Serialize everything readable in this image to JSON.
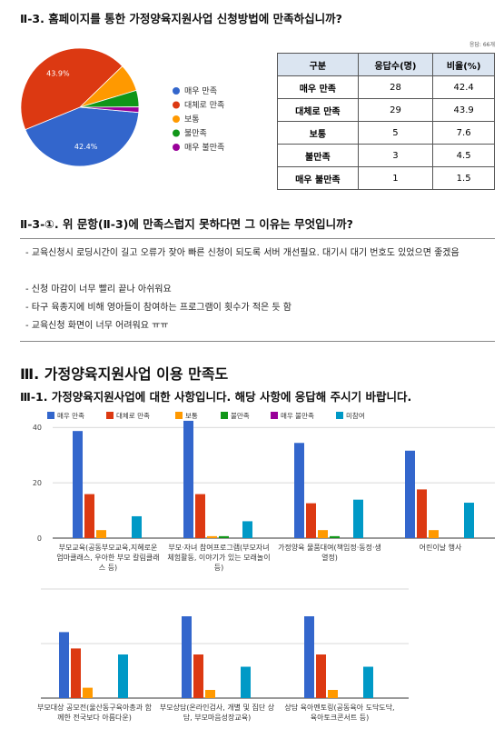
{
  "section1": {
    "title": "Ⅱ-3. 홈페이지를 통한 가정양육지원사업 신청방법에 만족하십니까?"
  },
  "table": {
    "note": "응답: 66개",
    "header": [
      "구분",
      "응답수(명)",
      "비율(%)"
    ],
    "rows": [
      [
        "매우 만족",
        28,
        42.4
      ],
      [
        "대체로 만족",
        29,
        43.9
      ],
      [
        "보통",
        5,
        7.6
      ],
      [
        "불만족",
        3,
        4.5
      ],
      [
        "매우 불만족",
        1,
        1.5
      ]
    ]
  },
  "section2": {
    "title": "Ⅱ-3-①. 위 문항(Ⅱ-3)에 만족스럽지 못하다면 그 이유는 무엇입니까?",
    "items": [
      "- 교육신청시 로딩시간이 길고 오류가 잦아 빠른 신청이 되도록 서버 개선필요. 대기시 대기 번호도 있었으면 좋겠음",
      "- 신청 마감이 너무 빨리 끝나 아쉬워요",
      "- 타구 육종지에 비해 영아들이 참여하는 프로그램이 횟수가 적은 듯 함",
      "- 교육신청 화면이 너무 어려워요 ㅠㅠ"
    ]
  },
  "section3": {
    "title": "Ⅲ. 가정양육지원사업 이용 만족도",
    "subtitle": "Ⅲ-1. 가정양육지원사업에 대한 사항입니다. 해당 사항에 응답해 주시기 바랍니다."
  },
  "chart_data": [
    {
      "type": "pie",
      "categories": [
        "매우 만족",
        "대체로 만족",
        "보통",
        "불만족",
        "매우 불만족"
      ],
      "values": [
        42.4,
        43.9,
        7.6,
        4.5,
        1.5
      ],
      "value_labels": [
        "42.4%",
        "43.9%",
        null,
        null,
        null
      ],
      "colors": [
        "#3366cc",
        "#dc3912",
        "#ff9900",
        "#109618",
        "#990099"
      ]
    },
    {
      "type": "bar",
      "categories": [
        "부모교육(공동부모교육,지혜로운 엄마클래스, 우아한 부모 칼림클래스 등)",
        "부모·자녀 참여프로그램(부모자녀 체험활동, 이야기가 있는 모래놀이 등)",
        "가정양육 물품대여(책임정·동정·생열정)",
        "어린이날 행사",
        "부모대상 공모전(울산동구육아총과 함께한 전국보다 아름다운)",
        "부모상담(온라인검사, 개별 및 집단 상담, 부모마음성장교육)",
        "상담 육아멘토링(공동육아 도닥도닥, 육아토크콘서트 등)"
      ],
      "series": [
        {
          "name": "매우 만족",
          "color": "#3366cc",
          "values": [
            38.7,
            42.4,
            34.4,
            31.6,
            24.2,
            30.0,
            30.0
          ]
        },
        {
          "name": "대체로 만족",
          "color": "#dc3912",
          "values": [
            15.9,
            15.9,
            12.6,
            17.6,
            18.2,
            16.0,
            16.0
          ]
        },
        {
          "name": "보통",
          "color": "#ff9900",
          "values": [
            2.9,
            0.7,
            2.9,
            2.9,
            3.8,
            3.0,
            3.0
          ]
        },
        {
          "name": "불만족",
          "color": "#109618",
          "values": [
            0,
            0.7,
            0.7,
            0,
            0,
            0,
            0
          ]
        },
        {
          "name": "매우 불만족",
          "color": "#990099",
          "values": [
            0,
            0,
            0,
            0,
            0,
            0,
            0
          ]
        },
        {
          "name": "미참여",
          "color": "#0099c6",
          "values": [
            7.9,
            6.1,
            13.9,
            12.8,
            16.0,
            11.5,
            11.5
          ]
        }
      ],
      "ylim": [
        0,
        45
      ],
      "yticks": [
        0,
        20,
        40
      ],
      "grid": true
    }
  ]
}
